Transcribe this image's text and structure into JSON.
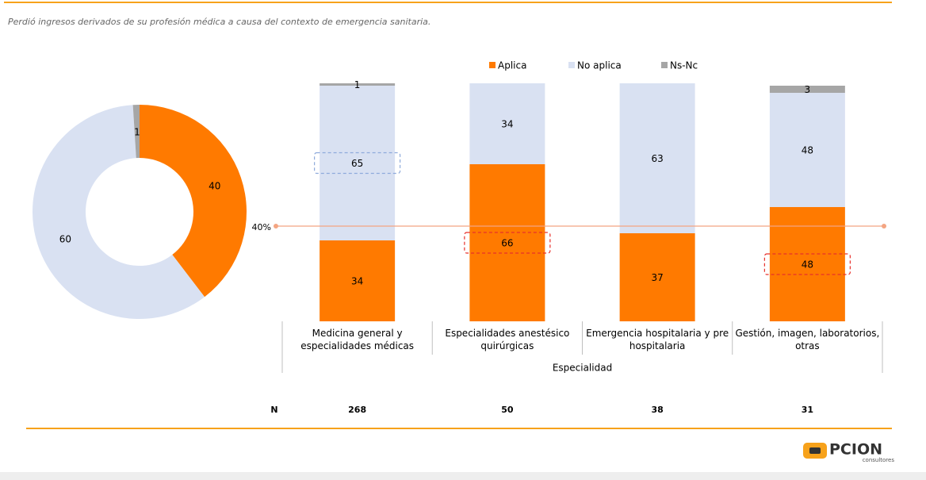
{
  "subtitle": "Perdió ingresos derivados de su profesión médica a causa del contexto de emergencia sanitaria.",
  "chart_data": [
    {
      "type": "donut",
      "categories": [
        "Aplica",
        "No aplica",
        "Ns-Nc"
      ],
      "values": [
        40,
        60,
        1
      ],
      "colors": [
        "#ff7a00",
        "#d9e1f2",
        "#a6a6a6"
      ]
    },
    {
      "type": "stacked_bar",
      "categories": [
        "Medicina general y especialidades médicas",
        "Especialidades anestésico quirúrgicas",
        "Emergencia hospitalaria y pre hospitalaria",
        "Gestión, imagen, laboratorios, otras"
      ],
      "series": [
        {
          "name": "Aplica",
          "color": "#ff7a00",
          "values": [
            34,
            66,
            37,
            48
          ]
        },
        {
          "name": "No aplica",
          "color": "#d9e1f2",
          "values": [
            65,
            34,
            63,
            48
          ]
        },
        {
          "name": "Ns-Nc",
          "color": "#a6a6a6",
          "values": [
            1,
            null,
            null,
            3
          ]
        }
      ],
      "xlabel": "Especialidad",
      "ylim": [
        0,
        100
      ],
      "reference_line": {
        "value": 40,
        "label": "40%",
        "color": "#f4a582"
      },
      "highlights": [
        {
          "series": 1,
          "index": 0,
          "color": "#8eaadb"
        },
        {
          "series": 0,
          "index": 1,
          "color": "#e8302a"
        },
        {
          "series": 0,
          "index": 3,
          "color": "#e8302a"
        }
      ],
      "n_label": "N",
      "n_values": [
        268,
        50,
        38,
        31
      ]
    }
  ],
  "logo": {
    "name": "PCION",
    "tagline": "consultores"
  }
}
